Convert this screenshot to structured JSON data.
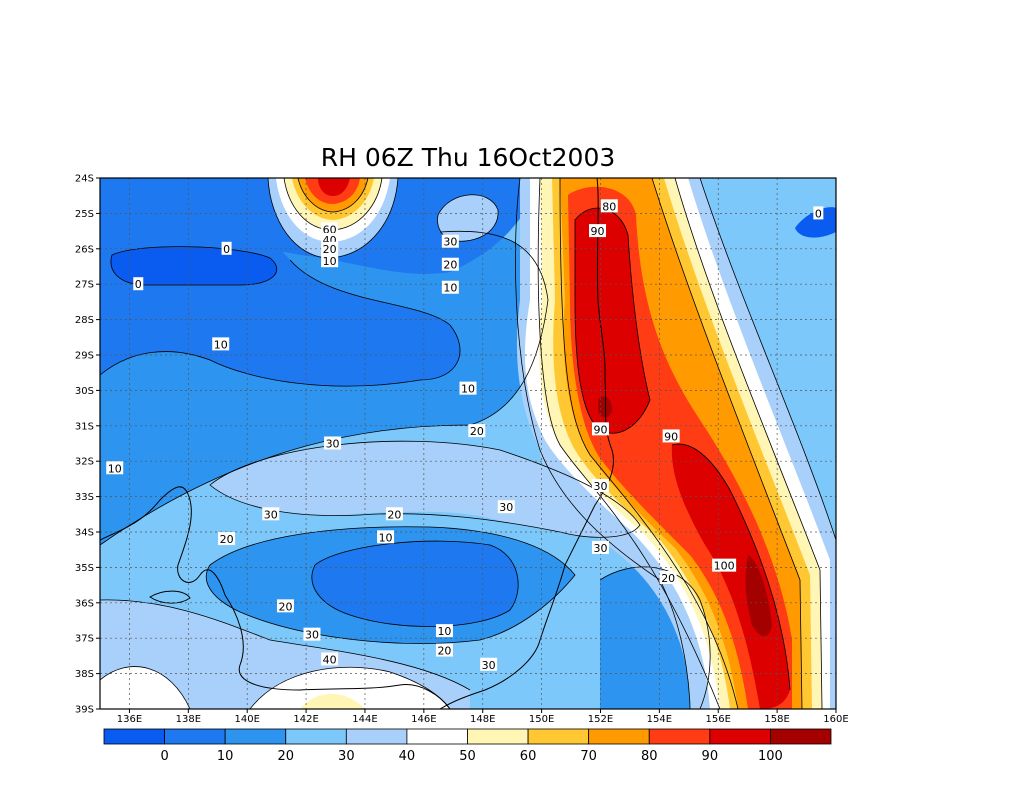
{
  "title": "RH 06Z Thu 16Oct2003",
  "map": {
    "lon_ticks": [
      "136E",
      "138E",
      "140E",
      "142E",
      "144E",
      "146E",
      "148E",
      "150E",
      "152E",
      "154E",
      "156E",
      "158E",
      "160E"
    ],
    "lat_ticks": [
      "24S",
      "25S",
      "26S",
      "27S",
      "28S",
      "29S",
      "30S",
      "31S",
      "32S",
      "33S",
      "34S",
      "35S",
      "36S",
      "37S",
      "38S",
      "39S"
    ],
    "lon_range": [
      135,
      160
    ],
    "lat_range": [
      -39,
      -24
    ],
    "grid": "dotted",
    "coastline": "eastern-australia"
  },
  "colorbar": {
    "labels": [
      "0",
      "10",
      "20",
      "30",
      "40",
      "50",
      "60",
      "70",
      "80",
      "90",
      "100"
    ],
    "colors": [
      "#0a5cf0",
      "#1e78f0",
      "#2d94f0",
      "#7dc8fa",
      "#a8d0fa",
      "#ffffff",
      "#fff5b4",
      "#ffc832",
      "#ff9a00",
      "#ff3c14",
      "#dc0000",
      "#a50000"
    ]
  },
  "contour_labels": [
    {
      "text": "0",
      "lon": 139.3,
      "lat": -26.0
    },
    {
      "text": "0",
      "lon": 136.3,
      "lat": -27.0
    },
    {
      "text": "0",
      "lon": 159.4,
      "lat": -25.0
    },
    {
      "text": "60",
      "lon": 142.8,
      "lat": -25.45
    },
    {
      "text": "40",
      "lon": 142.8,
      "lat": -25.75
    },
    {
      "text": "20",
      "lon": 142.8,
      "lat": -26.0
    },
    {
      "text": "10",
      "lon": 142.8,
      "lat": -26.35
    },
    {
      "text": "30",
      "lon": 146.9,
      "lat": -25.8
    },
    {
      "text": "20",
      "lon": 146.9,
      "lat": -26.45
    },
    {
      "text": "10",
      "lon": 146.9,
      "lat": -27.1
    },
    {
      "text": "80",
      "lon": 152.3,
      "lat": -24.8
    },
    {
      "text": "90",
      "lon": 151.9,
      "lat": -25.5
    },
    {
      "text": "10",
      "lon": 139.1,
      "lat": -28.7
    },
    {
      "text": "10",
      "lon": 147.5,
      "lat": -29.95
    },
    {
      "text": "20",
      "lon": 147.8,
      "lat": -31.15
    },
    {
      "text": "30",
      "lon": 142.9,
      "lat": -31.5
    },
    {
      "text": "90",
      "lon": 152.0,
      "lat": -31.1
    },
    {
      "text": "90",
      "lon": 154.4,
      "lat": -31.3
    },
    {
      "text": "10",
      "lon": 135.5,
      "lat": -32.2
    },
    {
      "text": "30",
      "lon": 152.0,
      "lat": -32.7
    },
    {
      "text": "30",
      "lon": 148.8,
      "lat": -33.3
    },
    {
      "text": "30",
      "lon": 140.8,
      "lat": -33.5
    },
    {
      "text": "20",
      "lon": 145.0,
      "lat": -33.5
    },
    {
      "text": "10",
      "lon": 144.7,
      "lat": -34.15
    },
    {
      "text": "20",
      "lon": 139.3,
      "lat": -34.2
    },
    {
      "text": "30",
      "lon": 152.0,
      "lat": -34.45
    },
    {
      "text": "100",
      "lon": 156.2,
      "lat": -34.95
    },
    {
      "text": "20",
      "lon": 154.3,
      "lat": -35.3
    },
    {
      "text": "20",
      "lon": 141.3,
      "lat": -36.1
    },
    {
      "text": "10",
      "lon": 146.7,
      "lat": -36.8
    },
    {
      "text": "30",
      "lon": 142.2,
      "lat": -36.9
    },
    {
      "text": "20",
      "lon": 146.7,
      "lat": -37.35
    },
    {
      "text": "40",
      "lon": 142.8,
      "lat": -37.6
    },
    {
      "text": "30",
      "lon": 148.2,
      "lat": -37.75
    }
  ]
}
